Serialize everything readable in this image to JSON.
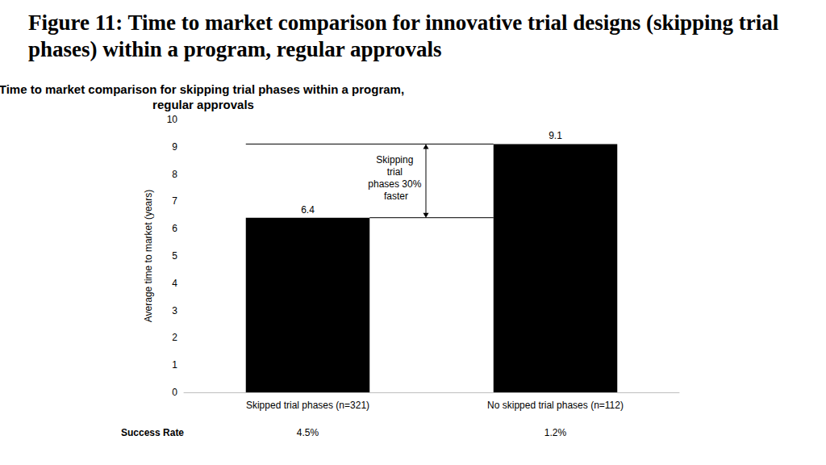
{
  "chart_data": {
    "type": "bar",
    "figure_title": "Figure 11: Time to market comparison for innovative trial designs (skipping trial phases) within a program, regular approvals",
    "title": "Time to market comparison for skipping trial phases within a program, regular approvals",
    "y_label": "Average time to market (years)",
    "categories": [
      "Skipped trial phases (n=321)",
      "No skipped trial phases (n=112)"
    ],
    "values": [
      6.4,
      9.1
    ],
    "color": "#000000",
    "ylim": [
      0,
      10
    ],
    "yticks": [
      0,
      1,
      2,
      3,
      4,
      5,
      6,
      7,
      8,
      9,
      10
    ],
    "grid": false,
    "data_labels": true,
    "annotation": "Skipping trial phases 30% faster",
    "table_row": {
      "label": "Success Rate",
      "values": [
        "4.5%",
        "1.2%"
      ]
    }
  }
}
